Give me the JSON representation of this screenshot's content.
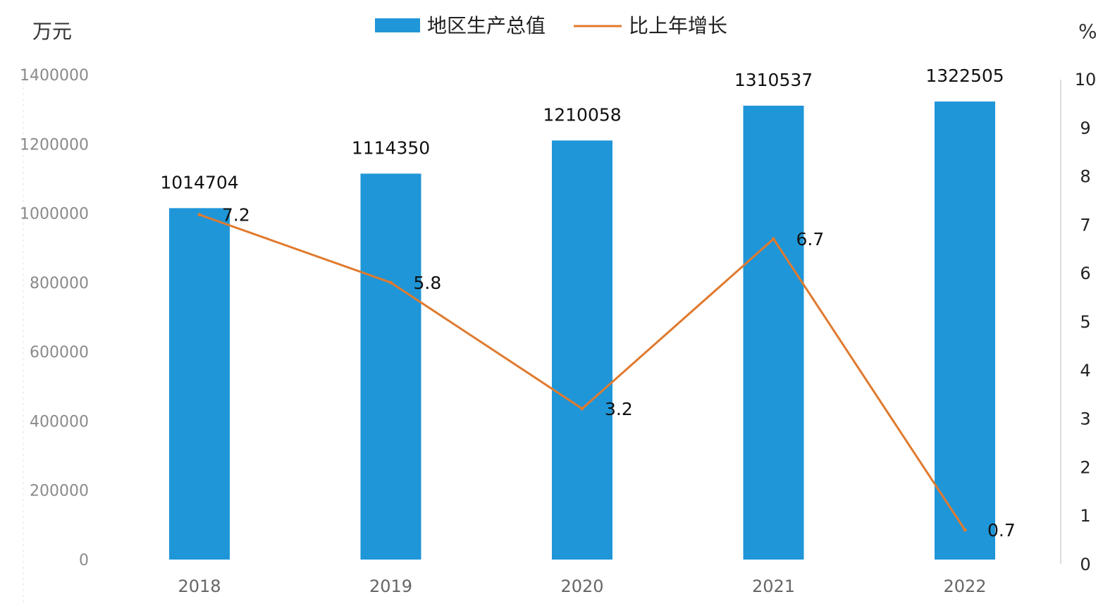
{
  "chart_data": {
    "type": "bar",
    "categories": [
      "2018",
      "2019",
      "2020",
      "2021",
      "2022"
    ],
    "series": [
      {
        "name": "地区生产总值",
        "type": "bar",
        "axis": "left",
        "values": [
          1014704,
          1114350,
          1210058,
          1310537,
          1322505
        ]
      },
      {
        "name": "比上年增长",
        "type": "line",
        "axis": "right",
        "values": [
          7.2,
          5.8,
          3.2,
          6.7,
          0.7
        ]
      }
    ],
    "left_axis": {
      "unit": "万元",
      "ylim": [
        0,
        1400000
      ],
      "ticks": [
        "0",
        "200000",
        "400000",
        "600000",
        "800000",
        "1000000",
        "1200000",
        "1400000"
      ]
    },
    "right_axis": {
      "unit": "%",
      "ylim": [
        0,
        10
      ],
      "ticks": [
        "0",
        "1",
        "2",
        "3",
        "4",
        "5",
        "6",
        "7",
        "8",
        "9",
        "10"
      ]
    },
    "legend_position": "top-center",
    "grid": false,
    "colors": {
      "bar": "#1f96d8",
      "line": "#e07a2e"
    }
  }
}
